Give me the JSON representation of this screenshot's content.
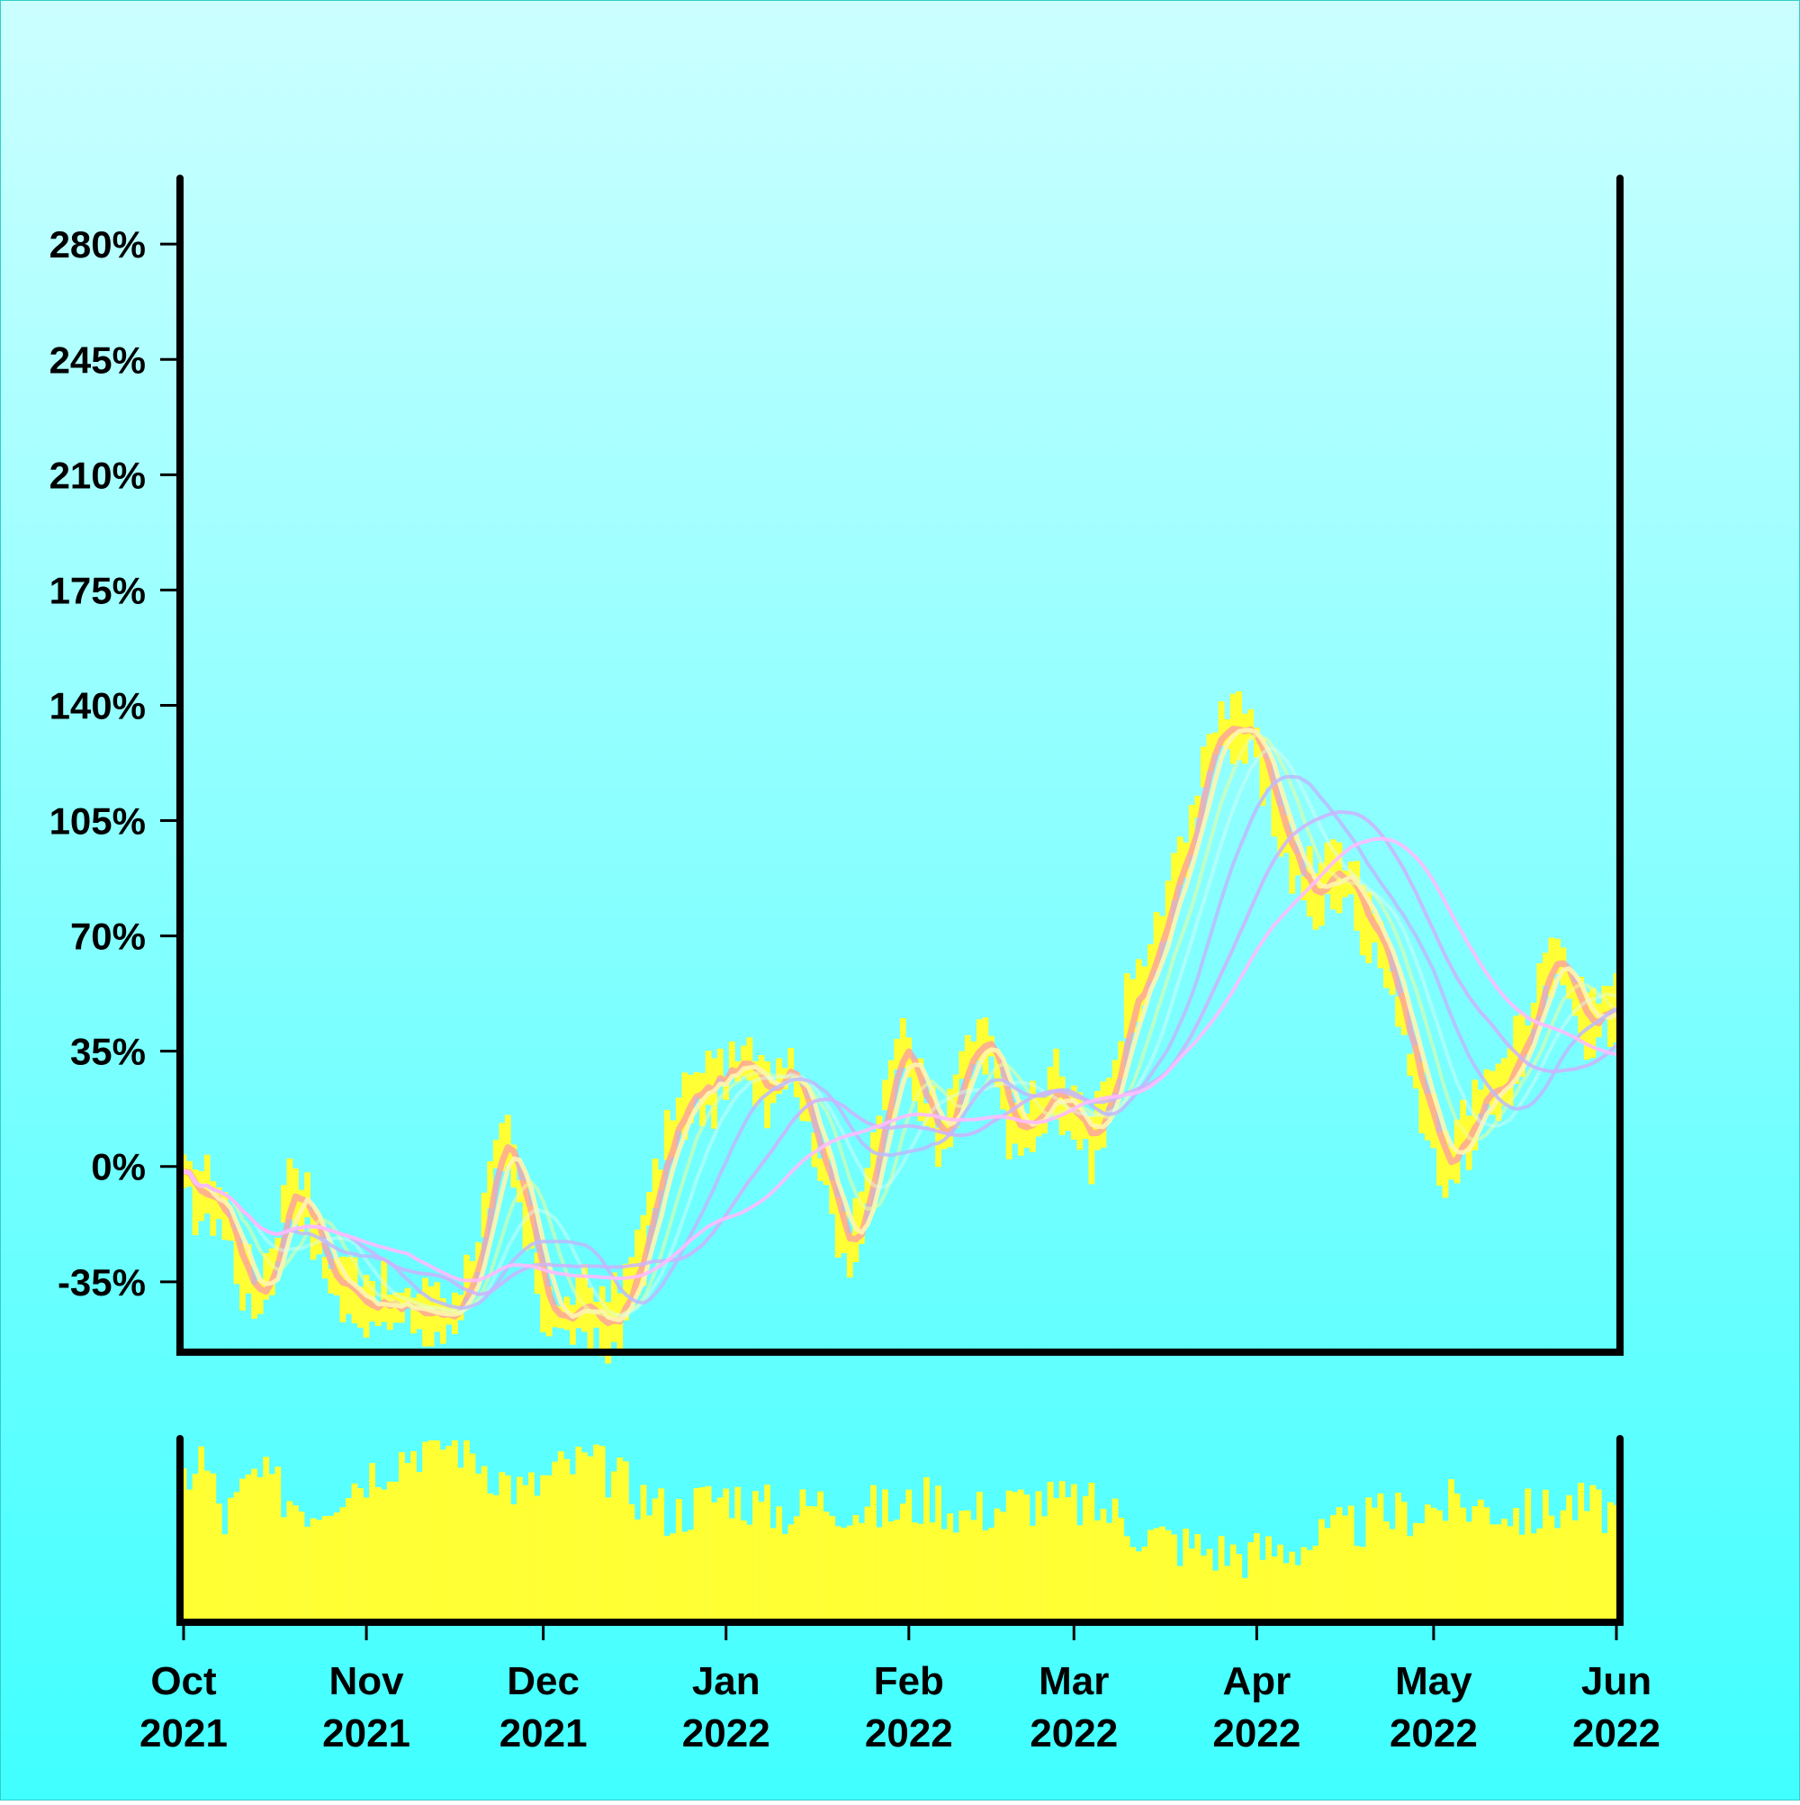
{
  "chart_data": {
    "type": "line",
    "title": "",
    "xlabel": "",
    "ylabel": "",
    "x_range": [
      "2021-10-01",
      "2022-06-01"
    ],
    "ylim": [
      -55,
      300
    ],
    "y_ticks": [
      -35,
      0,
      35,
      70,
      105,
      140,
      175,
      210,
      245,
      280
    ],
    "y_tick_labels": [
      "-35%",
      "0%",
      "35%",
      "70%",
      "105%",
      "140%",
      "175%",
      "210%",
      "245%",
      "280%"
    ],
    "x_ticks": [
      {
        "date": "2021-10-01",
        "month": "Oct",
        "year": "2021"
      },
      {
        "date": "2021-11-01",
        "month": "Nov",
        "year": "2021"
      },
      {
        "date": "2021-12-01",
        "month": "Dec",
        "year": "2021"
      },
      {
        "date": "2022-01-01",
        "month": "Jan",
        "year": "2022"
      },
      {
        "date": "2022-02-01",
        "month": "Feb",
        "year": "2022"
      },
      {
        "date": "2022-03-01",
        "month": "Mar",
        "year": "2022"
      },
      {
        "date": "2022-04-01",
        "month": "Apr",
        "year": "2022"
      },
      {
        "date": "2022-05-01",
        "month": "May",
        "year": "2022"
      },
      {
        "date": "2022-06-01",
        "month": "Jun",
        "year": "2022"
      }
    ],
    "grid": false,
    "background": [
      "#ccffff",
      "#40ffff"
    ],
    "price_color": "#ffff33",
    "volume_color": "#ffff33",
    "price_points": [
      [
        "2021-10-01",
        -5
      ],
      [
        "2021-10-05",
        -9
      ],
      [
        "2021-10-07",
        -10
      ],
      [
        "2021-10-10",
        -25
      ],
      [
        "2021-10-13",
        -40
      ],
      [
        "2021-10-16",
        -30
      ],
      [
        "2021-10-19",
        -5
      ],
      [
        "2021-10-22",
        -12
      ],
      [
        "2021-10-25",
        -30
      ],
      [
        "2021-10-29",
        -38
      ],
      [
        "2021-11-02",
        -40
      ],
      [
        "2021-11-06",
        -44
      ],
      [
        "2021-11-10",
        -43
      ],
      [
        "2021-11-14",
        -46
      ],
      [
        "2021-11-17",
        -40
      ],
      [
        "2021-11-20",
        -25
      ],
      [
        "2021-11-23",
        0
      ],
      [
        "2021-11-25",
        5
      ],
      [
        "2021-11-28",
        -15
      ],
      [
        "2021-12-01",
        -38
      ],
      [
        "2021-12-04",
        -47
      ],
      [
        "2021-12-08",
        -44
      ],
      [
        "2021-12-11",
        -46
      ],
      [
        "2021-12-14",
        -47
      ],
      [
        "2021-12-16",
        -35
      ],
      [
        "2021-12-19",
        -15
      ],
      [
        "2021-12-23",
        12
      ],
      [
        "2021-12-27",
        22
      ],
      [
        "2022-01-01",
        28
      ],
      [
        "2022-01-05",
        30
      ],
      [
        "2022-01-09",
        25
      ],
      [
        "2022-01-12",
        34
      ],
      [
        "2022-01-15",
        15
      ],
      [
        "2022-01-19",
        -10
      ],
      [
        "2022-01-22",
        -23
      ],
      [
        "2022-01-25",
        -10
      ],
      [
        "2022-01-28",
        20
      ],
      [
        "2022-01-31",
        36
      ],
      [
        "2022-02-03",
        25
      ],
      [
        "2022-02-06",
        10
      ],
      [
        "2022-02-09",
        22
      ],
      [
        "2022-02-13",
        40
      ],
      [
        "2022-02-16",
        30
      ],
      [
        "2022-02-19",
        10
      ],
      [
        "2022-02-22",
        12
      ],
      [
        "2022-02-26",
        22
      ],
      [
        "2022-03-01",
        15
      ],
      [
        "2022-03-04",
        5
      ],
      [
        "2022-03-07",
        20
      ],
      [
        "2022-03-10",
        45
      ],
      [
        "2022-03-14",
        60
      ],
      [
        "2022-03-18",
        85
      ],
      [
        "2022-03-22",
        110
      ],
      [
        "2022-03-25",
        132
      ],
      [
        "2022-03-28",
        136
      ],
      [
        "2022-03-31",
        130
      ],
      [
        "2022-04-04",
        110
      ],
      [
        "2022-04-08",
        90
      ],
      [
        "2022-04-11",
        80
      ],
      [
        "2022-04-14",
        92
      ],
      [
        "2022-04-18",
        82
      ],
      [
        "2022-04-22",
        70
      ],
      [
        "2022-04-26",
        42
      ],
      [
        "2022-04-30",
        15
      ],
      [
        "2022-05-03",
        2
      ],
      [
        "2022-05-06",
        8
      ],
      [
        "2022-05-10",
        20
      ],
      [
        "2022-05-14",
        30
      ],
      [
        "2022-05-18",
        45
      ],
      [
        "2022-05-21",
        62
      ],
      [
        "2022-05-25",
        55
      ],
      [
        "2022-05-28",
        42
      ],
      [
        "2022-06-01",
        50
      ]
    ],
    "series": [
      {
        "color": "#ff99aa",
        "width": 7,
        "opacity": 0.75,
        "window": 2
      },
      {
        "color": "#fff5b0",
        "width": 5,
        "opacity": 0.9,
        "window": 4
      },
      {
        "color": "#eeff99",
        "width": 4,
        "opacity": 0.55,
        "window": 8
      },
      {
        "color": "#ddfff0",
        "width": 4,
        "opacity": 0.45,
        "window": 12
      },
      {
        "color": "#bbbbff",
        "width": 4,
        "opacity": 0.85,
        "window": 18
      },
      {
        "color": "#ccb3ff",
        "width": 4,
        "opacity": 0.85,
        "window": 28
      },
      {
        "color": "#ffbbff",
        "width": 4,
        "opacity": 0.9,
        "window": 38
      }
    ],
    "volume_points": [
      [
        "2021-10-01",
        78
      ],
      [
        "2021-10-04",
        92
      ],
      [
        "2021-10-08",
        55
      ],
      [
        "2021-10-13",
        80
      ],
      [
        "2021-10-18",
        70
      ],
      [
        "2021-10-23",
        62
      ],
      [
        "2021-10-28",
        74
      ],
      [
        "2021-11-03",
        85
      ],
      [
        "2021-11-08",
        94
      ],
      [
        "2021-11-13",
        100
      ],
      [
        "2021-11-18",
        96
      ],
      [
        "2021-11-23",
        82
      ],
      [
        "2021-11-28",
        70
      ],
      [
        "2021-12-03",
        82
      ],
      [
        "2021-12-08",
        88
      ],
      [
        "2021-12-13",
        80
      ],
      [
        "2021-12-18",
        68
      ],
      [
        "2021-12-23",
        58
      ],
      [
        "2021-12-28",
        66
      ],
      [
        "2022-01-02",
        70
      ],
      [
        "2022-01-07",
        62
      ],
      [
        "2022-01-12",
        60
      ],
      [
        "2022-01-18",
        66
      ],
      [
        "2022-01-24",
        62
      ],
      [
        "2022-01-30",
        60
      ],
      [
        "2022-02-05",
        68
      ],
      [
        "2022-02-11",
        58
      ],
      [
        "2022-02-17",
        64
      ],
      [
        "2022-02-23",
        66
      ],
      [
        "2022-03-01",
        64
      ],
      [
        "2022-03-07",
        60
      ],
      [
        "2022-03-13",
        48
      ],
      [
        "2022-03-19",
        42
      ],
      [
        "2022-03-25",
        38
      ],
      [
        "2022-03-31",
        36
      ],
      [
        "2022-04-06",
        40
      ],
      [
        "2022-04-12",
        44
      ],
      [
        "2022-04-18",
        52
      ],
      [
        "2022-04-24",
        58
      ],
      [
        "2022-04-30",
        62
      ],
      [
        "2022-05-06",
        64
      ],
      [
        "2022-05-12",
        62
      ],
      [
        "2022-05-18",
        58
      ],
      [
        "2022-05-24",
        64
      ],
      [
        "2022-06-01",
        60
      ]
    ]
  }
}
